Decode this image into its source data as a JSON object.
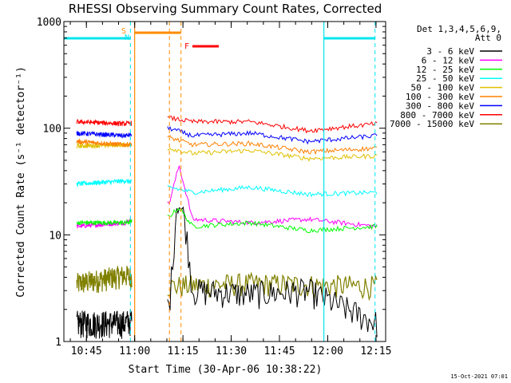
{
  "chart_data": {
    "type": "line",
    "title": "RHESSI Observing Summary Count Rates, Corrected",
    "xlabel": "Start Time (30-Apr-06 10:38:22)",
    "ylabel": "Corrected Count Rate (s⁻¹ detector⁻¹)",
    "y_scale": "log",
    "ylim": [
      1,
      1000
    ],
    "xlim": [
      "10:38",
      "12:18"
    ],
    "x_ticks": [
      "10:45",
      "11:00",
      "11:15",
      "11:30",
      "11:45",
      "12:00",
      "12:15"
    ],
    "y_ticks": [
      "1",
      "10",
      "100",
      "1000"
    ],
    "legend_header": [
      "Det 1,3,4,5,6,9,",
      "Att 0"
    ],
    "legend_position": "right",
    "footer": "15-Oct-2021 07:01",
    "markers": {
      "S": {
        "label": "S",
        "color": "#ff8c00",
        "time": "10:59"
      },
      "N": {
        "label": "N",
        "color": "#00e5ee",
        "time": "10:59"
      },
      "F": {
        "label": "F",
        "color": "#ff0000",
        "time": "11:16"
      }
    },
    "series": [
      {
        "name": "3 - 6 keV",
        "color": "#000000",
        "values": [
          [
            10.7,
            1.5
          ],
          [
            10.95,
            1.5
          ],
          [
            11.18,
            2.2
          ],
          [
            11.22,
            22
          ],
          [
            11.26,
            14
          ],
          [
            11.3,
            3
          ],
          [
            11.6,
            2.8
          ],
          [
            11.9,
            3
          ],
          [
            12.25,
            1.5
          ]
        ]
      },
      {
        "name": "6 - 12 keV",
        "color": "#ff00ff",
        "values": [
          [
            10.7,
            12
          ],
          [
            10.95,
            13
          ],
          [
            11.18,
            20
          ],
          [
            11.23,
            45
          ],
          [
            11.3,
            14
          ],
          [
            11.6,
            13
          ],
          [
            11.9,
            14
          ],
          [
            12.25,
            12
          ]
        ]
      },
      {
        "name": "12 - 25 keV",
        "color": "#00ff00",
        "values": [
          [
            10.7,
            13
          ],
          [
            10.95,
            13
          ],
          [
            11.18,
            15
          ],
          [
            11.23,
            18
          ],
          [
            11.3,
            12
          ],
          [
            11.6,
            13
          ],
          [
            11.9,
            11
          ],
          [
            12.25,
            12
          ]
        ]
      },
      {
        "name": "25 - 50 keV",
        "color": "#00ffff",
        "values": [
          [
            10.7,
            30
          ],
          [
            10.95,
            32
          ],
          [
            11.18,
            28
          ],
          [
            11.3,
            25
          ],
          [
            11.6,
            28
          ],
          [
            11.9,
            24
          ],
          [
            12.25,
            25
          ]
        ]
      },
      {
        "name": "50 - 100 keV",
        "color": "#e0c000",
        "values": [
          [
            10.7,
            68
          ],
          [
            10.95,
            70
          ],
          [
            11.18,
            65
          ],
          [
            11.3,
            58
          ],
          [
            11.6,
            62
          ],
          [
            11.9,
            52
          ],
          [
            12.25,
            55
          ]
        ]
      },
      {
        "name": "100 - 300 keV",
        "color": "#ff8000",
        "values": [
          [
            10.7,
            75
          ],
          [
            10.95,
            70
          ],
          [
            11.18,
            82
          ],
          [
            11.3,
            70
          ],
          [
            11.6,
            72
          ],
          [
            11.9,
            60
          ],
          [
            12.25,
            65
          ]
        ]
      },
      {
        "name": "300 - 800 keV",
        "color": "#0000ff",
        "values": [
          [
            10.7,
            90
          ],
          [
            10.95,
            85
          ],
          [
            11.18,
            100
          ],
          [
            11.3,
            85
          ],
          [
            11.6,
            90
          ],
          [
            11.9,
            75
          ],
          [
            12.25,
            85
          ]
        ]
      },
      {
        "name": "800 - 7000 keV",
        "color": "#ff0000",
        "values": [
          [
            10.7,
            115
          ],
          [
            10.95,
            110
          ],
          [
            11.18,
            125
          ],
          [
            11.3,
            115
          ],
          [
            11.6,
            115
          ],
          [
            11.9,
            95
          ],
          [
            12.25,
            110
          ]
        ]
      },
      {
        "name": "7000 - 15000 keV",
        "color": "#808000",
        "values": [
          [
            10.7,
            3.5
          ],
          [
            10.95,
            4.2
          ],
          [
            11.18,
            3.3
          ],
          [
            11.6,
            3.5
          ],
          [
            11.9,
            3.4
          ],
          [
            12.25,
            3.3
          ]
        ]
      }
    ]
  }
}
